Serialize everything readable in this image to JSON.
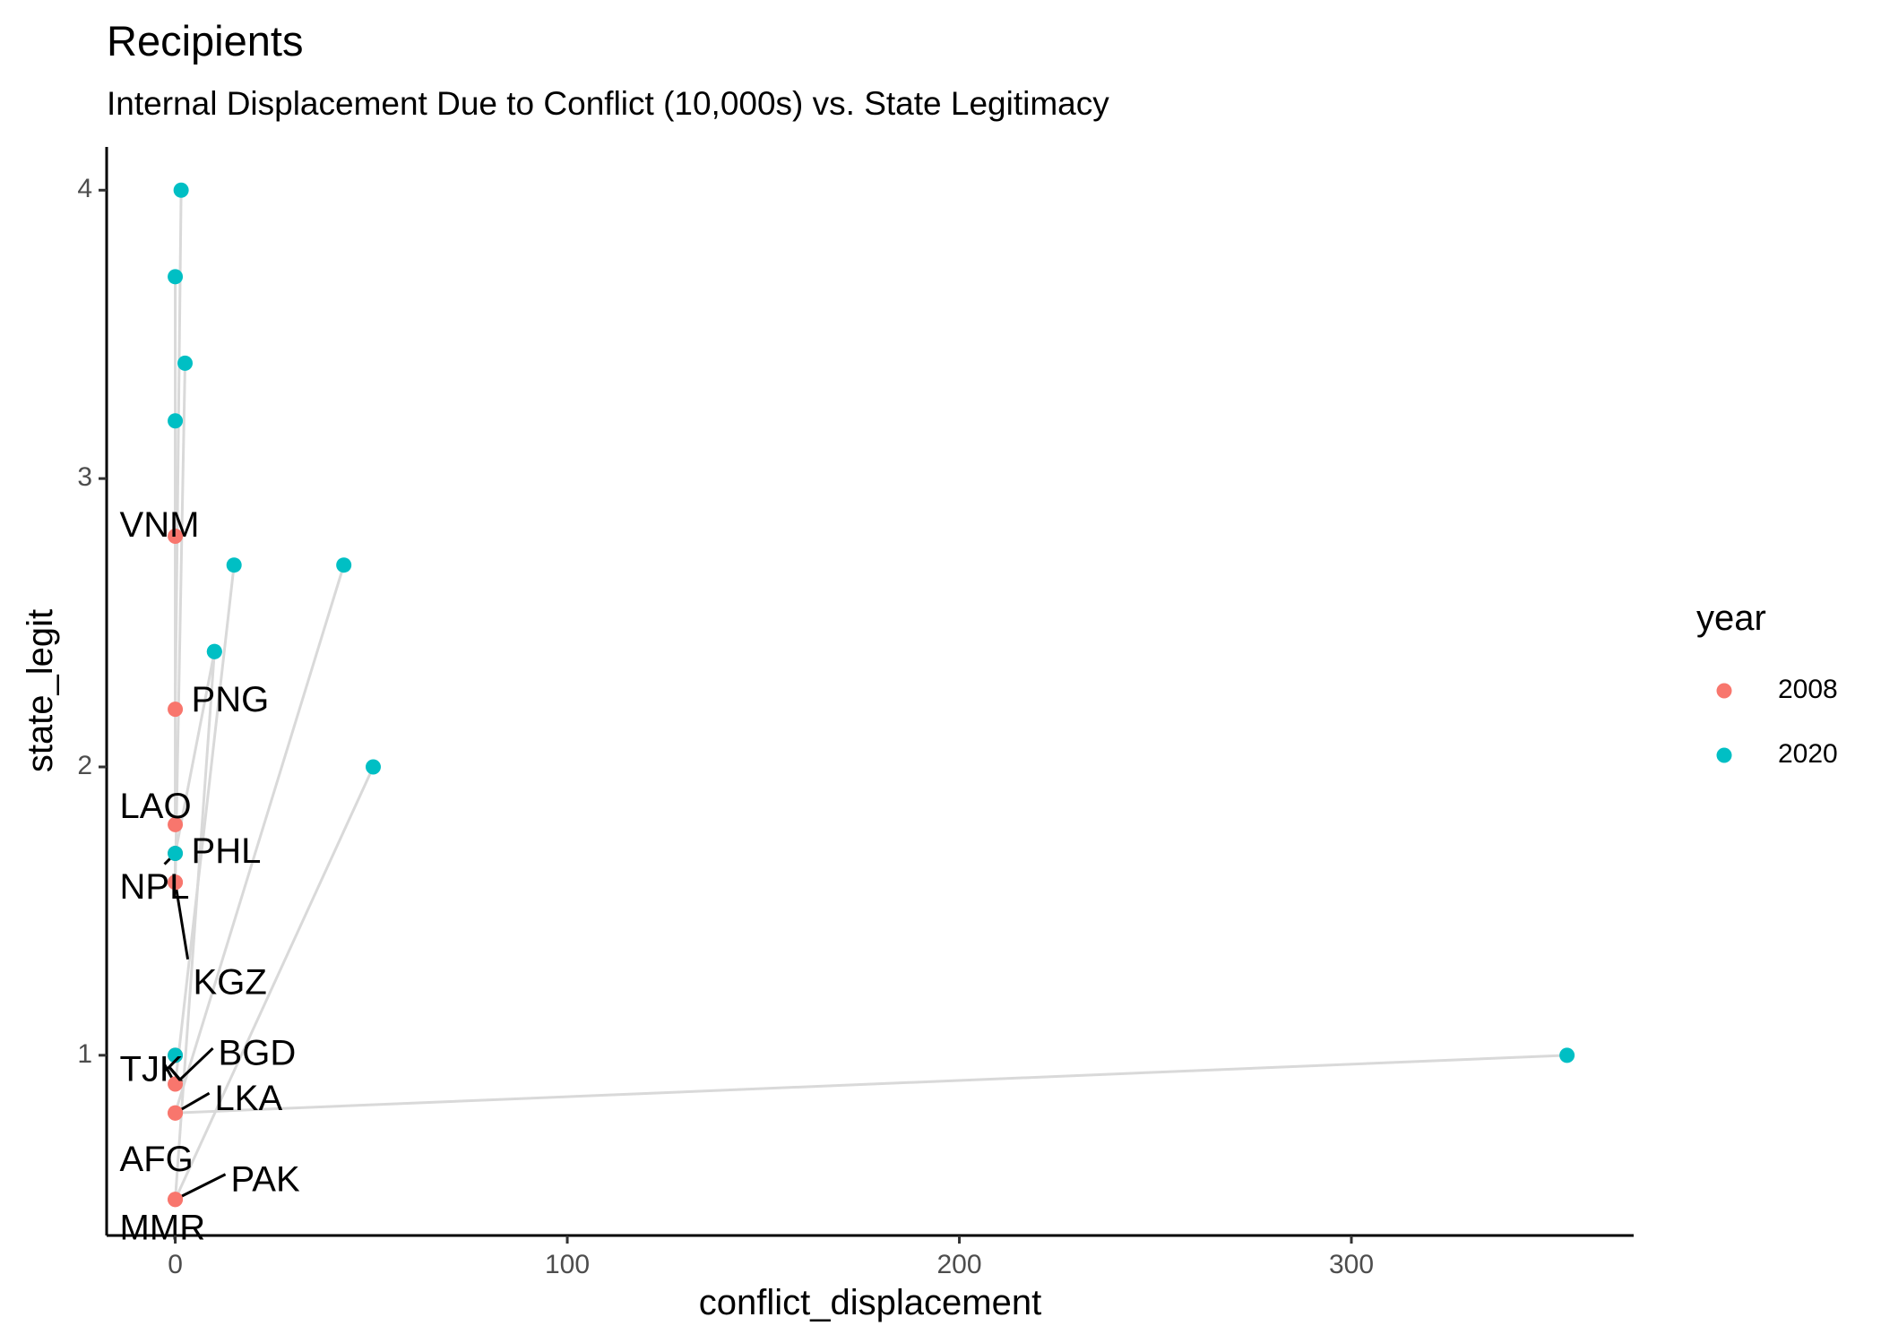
{
  "chart_data": {
    "type": "scatter",
    "title": "Recipients",
    "subtitle": "Internal Displacement Due to Conflict (10,000s) vs. State Legitimacy",
    "xlabel": "conflict_displacement",
    "ylabel": "state_legit",
    "xlim": [
      -17.5,
      372
    ],
    "ylim": [
      0.375,
      4.15
    ],
    "x_ticks": [
      {
        "value": 0,
        "label": "0"
      },
      {
        "value": 100,
        "label": "100"
      },
      {
        "value": 200,
        "label": "200"
      },
      {
        "value": 300,
        "label": "300"
      }
    ],
    "y_ticks": [
      {
        "value": 1,
        "label": "1"
      },
      {
        "value": 2,
        "label": "2"
      },
      {
        "value": 3,
        "label": "3"
      },
      {
        "value": 4,
        "label": "4"
      }
    ],
    "grid": false,
    "legend": {
      "title": "year",
      "placement": "right",
      "entries": [
        {
          "label": "2008",
          "color": "#F8766D"
        },
        {
          "label": "2020",
          "color": "#00BFC4"
        }
      ]
    },
    "line_color": "#d9d9d9",
    "label_color": "#000000",
    "series": [
      {
        "name": "2008",
        "color": "#F8766D",
        "points": [
          {
            "id": "VNM",
            "x": 0,
            "y": 2.8
          },
          {
            "id": "PNG",
            "x": 0,
            "y": 2.2
          },
          {
            "id": "LAO",
            "x": 0,
            "y": 1.8
          },
          {
            "id": "PHL",
            "x": 0,
            "y": 1.7
          },
          {
            "id": "NPL",
            "x": 0,
            "y": 1.6
          },
          {
            "id": "KGZ",
            "x": 0,
            "y": 1.6
          },
          {
            "id": "BGD",
            "x": 0,
            "y": 1.0
          },
          {
            "id": "TJK",
            "x": 0,
            "y": 0.9
          },
          {
            "id": "LKA",
            "x": 0,
            "y": 0.8
          },
          {
            "id": "AFG",
            "x": 0,
            "y": 0.8
          },
          {
            "id": "PAK",
            "x": 0,
            "y": 0.5
          },
          {
            "id": "MMR",
            "x": 0,
            "y": 0.5
          }
        ]
      },
      {
        "name": "2020",
        "color": "#00BFC4",
        "points": [
          {
            "id": "VNM",
            "x": 0,
            "y": 3.2
          },
          {
            "id": "PNG",
            "x": 1.5,
            "y": 4.0
          },
          {
            "id": "LAO",
            "x": 0,
            "y": 3.7
          },
          {
            "id": "PHL",
            "x": 10,
            "y": 2.4
          },
          {
            "id": "NPL",
            "x": 2.5,
            "y": 3.4
          },
          {
            "id": "KGZ",
            "x": 0,
            "y": 1.7
          },
          {
            "id": "BGD",
            "x": 0,
            "y": 1.0
          },
          {
            "id": "TJK",
            "x": 15,
            "y": 2.7
          },
          {
            "id": "LKA",
            "x": 355,
            "y": 1.0
          },
          {
            "id": "AFG",
            "x": 43,
            "y": 2.7
          },
          {
            "id": "PAK",
            "x": 50.5,
            "y": 2.0
          },
          {
            "id": "MMR",
            "x": 10,
            "y": 2.4
          }
        ]
      }
    ],
    "labels": [
      {
        "text": "VNM",
        "x": 0,
        "y": 2.8
      },
      {
        "text": "PNG",
        "x": 0,
        "y": 2.2
      },
      {
        "text": "LAO",
        "x": 0,
        "y": 1.8
      },
      {
        "text": "PHL",
        "x": 0,
        "y": 1.7
      },
      {
        "text": "NPL",
        "x": 0,
        "y": 1.7
      },
      {
        "text": "KGZ",
        "x": 0,
        "y": 1.6
      },
      {
        "text": "BGD",
        "x": 0,
        "y": 0.9
      },
      {
        "text": "TJK",
        "x": 0,
        "y": 0.9
      },
      {
        "text": "LKA",
        "x": 0,
        "y": 0.8
      },
      {
        "text": "AFG",
        "x": 0,
        "y": 0.8
      },
      {
        "text": "PAK",
        "x": 0,
        "y": 0.5
      },
      {
        "text": "MMR",
        "x": 0,
        "y": 0.5
      }
    ]
  }
}
